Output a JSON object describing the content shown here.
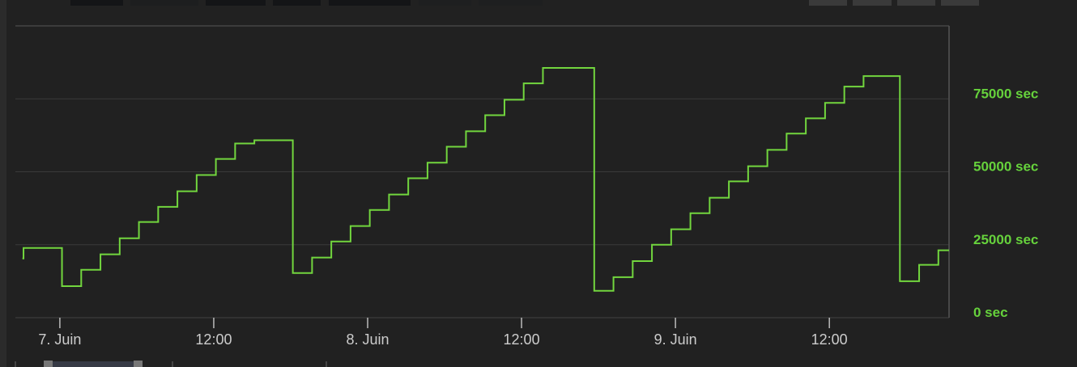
{
  "chart_data": {
    "type": "line",
    "step": true,
    "xaxis_type": "datetime",
    "xlim": [
      "2000-06-06T20:32",
      "2000-06-09T21:20"
    ],
    "ylim": [
      0,
      100000
    ],
    "y_ticks": [
      0,
      25000,
      50000,
      75000
    ],
    "y_tick_labels": [
      "0 sec",
      "25000 sec",
      "50000 sec",
      "75000 sec"
    ],
    "x_ticks": [
      "2000-06-07T00:00",
      "2000-06-07T12:00",
      "2000-06-08T00:00",
      "2000-06-08T12:00",
      "2000-06-09T00:00",
      "2000-06-09T12:00"
    ],
    "x_tick_labels": [
      "7. Juin",
      "12:00",
      "8. Juin",
      "12:00",
      "9. Juin",
      "12:00"
    ],
    "grid": true,
    "yaxis_side": "right",
    "series": [
      {
        "color": "#72d63e",
        "points": [
          [
            "2000-06-06T21:05",
            20300
          ],
          [
            "2000-06-06T21:10",
            23900
          ],
          [
            "2000-06-07T00:10",
            10800
          ],
          [
            "2000-06-07T01:40",
            16400
          ],
          [
            "2000-06-07T03:10",
            21700
          ],
          [
            "2000-06-07T04:40",
            27200
          ],
          [
            "2000-06-07T06:10",
            32800
          ],
          [
            "2000-06-07T07:40",
            38000
          ],
          [
            "2000-06-07T09:10",
            43300
          ],
          [
            "2000-06-07T10:40",
            48900
          ],
          [
            "2000-06-07T12:10",
            54400
          ],
          [
            "2000-06-07T13:40",
            59700
          ],
          [
            "2000-06-07T15:10",
            60800
          ],
          [
            "2000-06-07T18:10",
            15300
          ],
          [
            "2000-06-07T19:40",
            20600
          ],
          [
            "2000-06-07T21:10",
            26100
          ],
          [
            "2000-06-07T22:40",
            31400
          ],
          [
            "2000-06-08T00:10",
            36900
          ],
          [
            "2000-06-08T01:40",
            42200
          ],
          [
            "2000-06-08T03:10",
            47800
          ],
          [
            "2000-06-08T04:40",
            53100
          ],
          [
            "2000-06-08T06:10",
            58600
          ],
          [
            "2000-06-08T07:40",
            63900
          ],
          [
            "2000-06-08T09:10",
            69400
          ],
          [
            "2000-06-08T10:40",
            74700
          ],
          [
            "2000-06-08T12:10",
            80300
          ],
          [
            "2000-06-08T13:40",
            85600
          ],
          [
            "2000-06-08T17:40",
            9200
          ],
          [
            "2000-06-08T19:10",
            13900
          ],
          [
            "2000-06-08T20:40",
            19400
          ],
          [
            "2000-06-08T22:10",
            25000
          ],
          [
            "2000-06-08T23:40",
            30300
          ],
          [
            "2000-06-09T01:10",
            35800
          ],
          [
            "2000-06-09T02:40",
            41100
          ],
          [
            "2000-06-09T04:10",
            46700
          ],
          [
            "2000-06-09T05:40",
            51900
          ],
          [
            "2000-06-09T07:10",
            57500
          ],
          [
            "2000-06-09T08:40",
            63100
          ],
          [
            "2000-06-09T10:10",
            68300
          ],
          [
            "2000-06-09T11:40",
            73600
          ],
          [
            "2000-06-09T13:10",
            79200
          ],
          [
            "2000-06-09T14:40",
            82800
          ],
          [
            "2000-06-09T17:30",
            12500
          ],
          [
            "2000-06-09T19:00",
            18100
          ],
          [
            "2000-06-09T20:30",
            23100
          ],
          [
            "2000-06-09T21:20",
            23100
          ]
        ]
      }
    ],
    "colors": {
      "background": "#212121",
      "grid": "#3a3a3a",
      "y_labels": "#66d23c",
      "x_labels": "#cccccc"
    }
  }
}
